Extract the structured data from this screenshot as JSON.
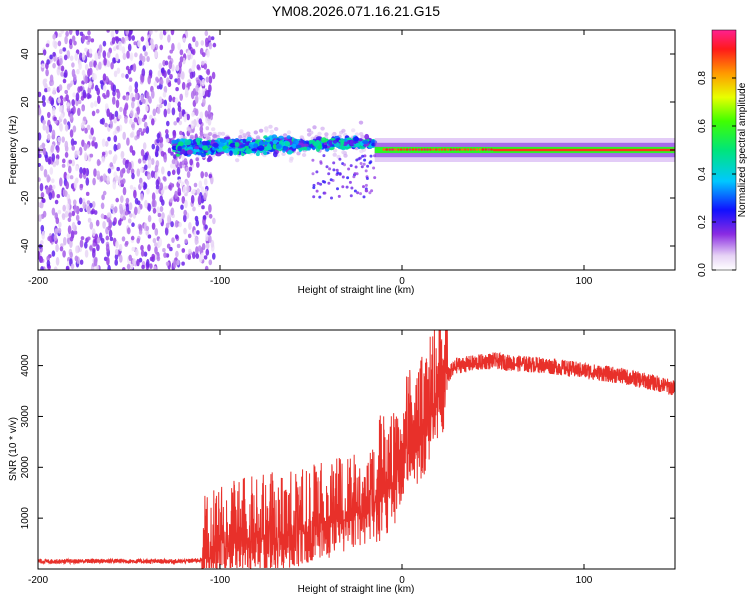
{
  "figure_title": "YM08.2026.071.16.21.G15",
  "chart_data": [
    {
      "type": "heatmap",
      "title": "YM08.2026.071.16.21.G15",
      "xlabel": "Height of straight line (km)",
      "ylabel": "Frequency (Hz)",
      "xlim": [
        -200,
        150
      ],
      "ylim": [
        -50,
        50
      ],
      "xticks": [
        -200,
        -100,
        0,
        100
      ],
      "yticks": [
        -40,
        -20,
        0,
        20,
        40
      ],
      "colorbar": {
        "label": "Normalized spectral amplitude",
        "range": [
          0.0,
          1.0
        ],
        "ticks": [
          0.0,
          0.2,
          0.4,
          0.6,
          0.8
        ],
        "tick_labels": [
          "0.0",
          "0.2",
          "0.4",
          "0.6",
          "0.8"
        ]
      },
      "description_regions": [
        {
          "x_range": [
            -200,
            -103
          ],
          "freq_range": [
            -50,
            50
          ],
          "amplitude": 0.15,
          "pattern": "scattered noise"
        },
        {
          "x_range": [
            -125,
            -15
          ],
          "freq_range": [
            -8,
            10
          ],
          "amplitude": 0.4,
          "pattern": "clustered signal"
        },
        {
          "x_range": [
            -15,
            150
          ],
          "freq_range": [
            -2,
            2
          ],
          "amplitude": 0.9,
          "pattern": "narrow carrier line"
        }
      ]
    },
    {
      "type": "line",
      "xlabel": "Height of straight line (km)",
      "ylabel": "SNR (10 * v/v)",
      "xlim": [
        -200,
        150
      ],
      "ylim": [
        0,
        4700
      ],
      "xticks": [
        -200,
        -100,
        0,
        100
      ],
      "yticks": [
        1000,
        2000,
        3000,
        4000
      ],
      "series": [
        {
          "name": "SNR",
          "color": "#e8302a",
          "x": [
            -200,
            -180,
            -160,
            -140,
            -120,
            -110,
            -105,
            -100,
            -90,
            -80,
            -70,
            -60,
            -50,
            -40,
            -30,
            -20,
            -15,
            -10,
            -5,
            0,
            5,
            10,
            15,
            20,
            25,
            30,
            40,
            50,
            60,
            80,
            100,
            120,
            140,
            150
          ],
          "y": [
            150,
            150,
            160,
            150,
            150,
            180,
            250,
            400,
            550,
            600,
            650,
            700,
            800,
            900,
            1000,
            1200,
            1300,
            1500,
            1700,
            2000,
            2400,
            2600,
            2900,
            3400,
            3800,
            4000,
            4050,
            4100,
            4050,
            4000,
            3900,
            3800,
            3650,
            3550
          ]
        }
      ]
    }
  ]
}
